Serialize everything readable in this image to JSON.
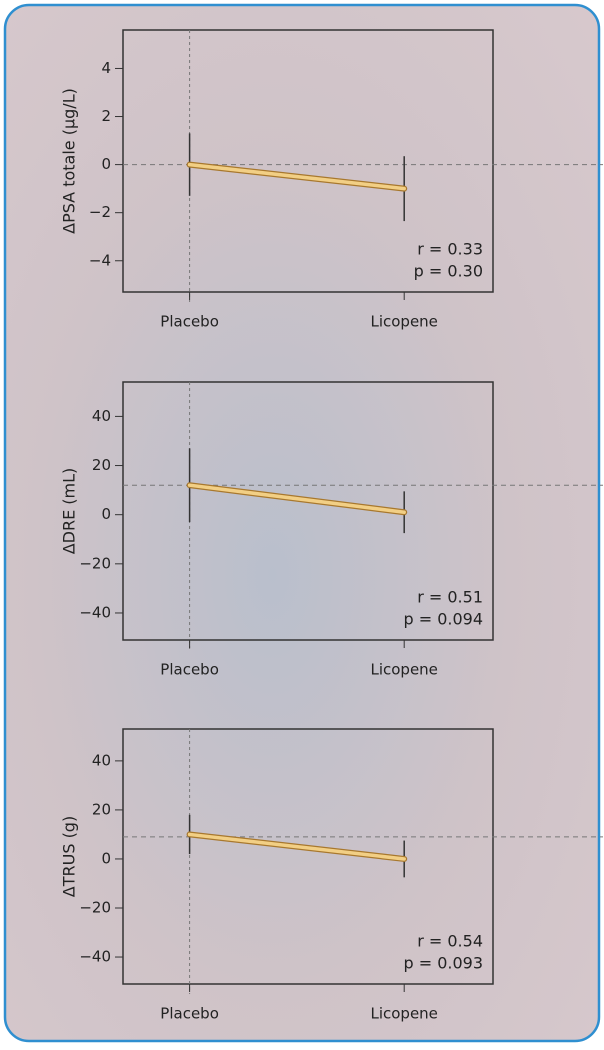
{
  "chart_data": [
    {
      "type": "line",
      "ylabel": "ΔPSA totale (µg/L)",
      "categories": [
        "Placebo",
        "Licopene"
      ],
      "series": [
        {
          "values": [
            0,
            -1
          ],
          "errors": [
            1.3,
            1.35
          ],
          "color": "#f2cf85"
        }
      ],
      "ylim": [
        -5.3,
        5.6
      ],
      "yticks": [
        {
          "value": -4,
          "label": "−4"
        },
        {
          "value": -2,
          "label": "−2"
        },
        0,
        2,
        4
      ],
      "hline": 0,
      "annotations": [
        "r = 0.33",
        "p = 0.30"
      ]
    },
    {
      "type": "line",
      "ylabel": "ΔDRE (mL)",
      "categories": [
        "Placebo",
        "Licopene"
      ],
      "series": [
        {
          "values": [
            12,
            1
          ],
          "errors": [
            15,
            8.5
          ],
          "color": "#f2cf85"
        }
      ],
      "ylim": [
        -51,
        54
      ],
      "yticks": [
        {
          "value": -40,
          "label": "−40"
        },
        {
          "value": -20,
          "label": "−20"
        },
        0,
        20,
        40
      ],
      "hline": 12,
      "annotations": [
        "r = 0.51",
        "p = 0.094"
      ]
    },
    {
      "type": "line",
      "ylabel": "ΔTRUS (g)",
      "categories": [
        "Placebo",
        "Licopene"
      ],
      "series": [
        {
          "values": [
            10,
            0
          ],
          "errors": [
            8,
            7.5
          ],
          "color": "#f2cf85"
        }
      ],
      "ylim": [
        -51,
        53
      ],
      "yticks": [
        {
          "value": -40,
          "label": "−40"
        },
        {
          "value": -20,
          "label": "−20"
        },
        0,
        20,
        40
      ],
      "hline": 9,
      "annotations": [
        "r = 0.54",
        "p = 0.093"
      ]
    }
  ]
}
